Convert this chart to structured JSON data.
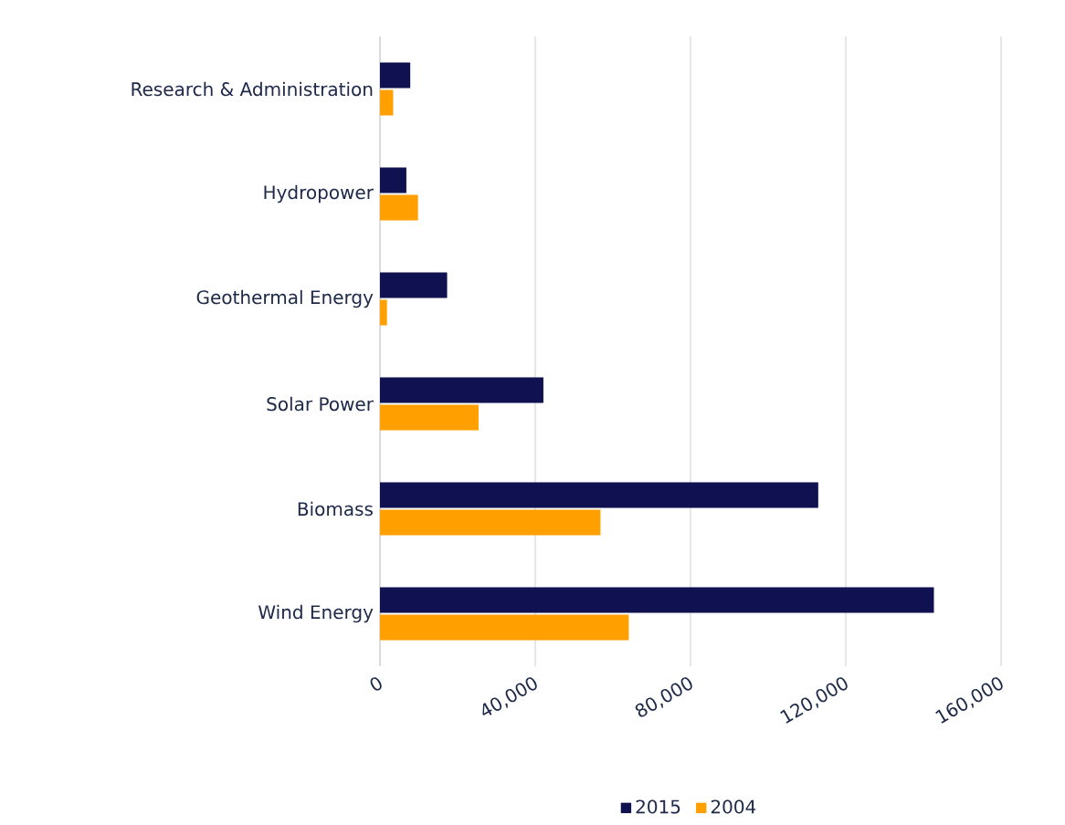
{
  "chart_data": {
    "type": "bar",
    "orientation": "horizontal",
    "categories": [
      "Research & Administration",
      "Hydropower",
      "Geothermal Energy",
      "Solar Power",
      "Biomass",
      "Wind Energy"
    ],
    "series": [
      {
        "name": "2015",
        "color": "#0f1150",
        "values": [
          7800,
          6800,
          17300,
          42100,
          112900,
          142700
        ]
      },
      {
        "name": "2004",
        "color": "#ffa000",
        "values": [
          3400,
          9800,
          1800,
          25400,
          56800,
          64100
        ]
      }
    ],
    "xlim": [
      0,
      160000
    ],
    "xticks": [
      0,
      {
        "value": 40000,
        "label": "40,000"
      },
      {
        "value": 80000,
        "label": "80,000"
      },
      {
        "value": 120000,
        "label": "120,000"
      },
      {
        "value": 160000,
        "label": "160,000"
      }
    ],
    "grid": "x",
    "legend": "bottom"
  }
}
